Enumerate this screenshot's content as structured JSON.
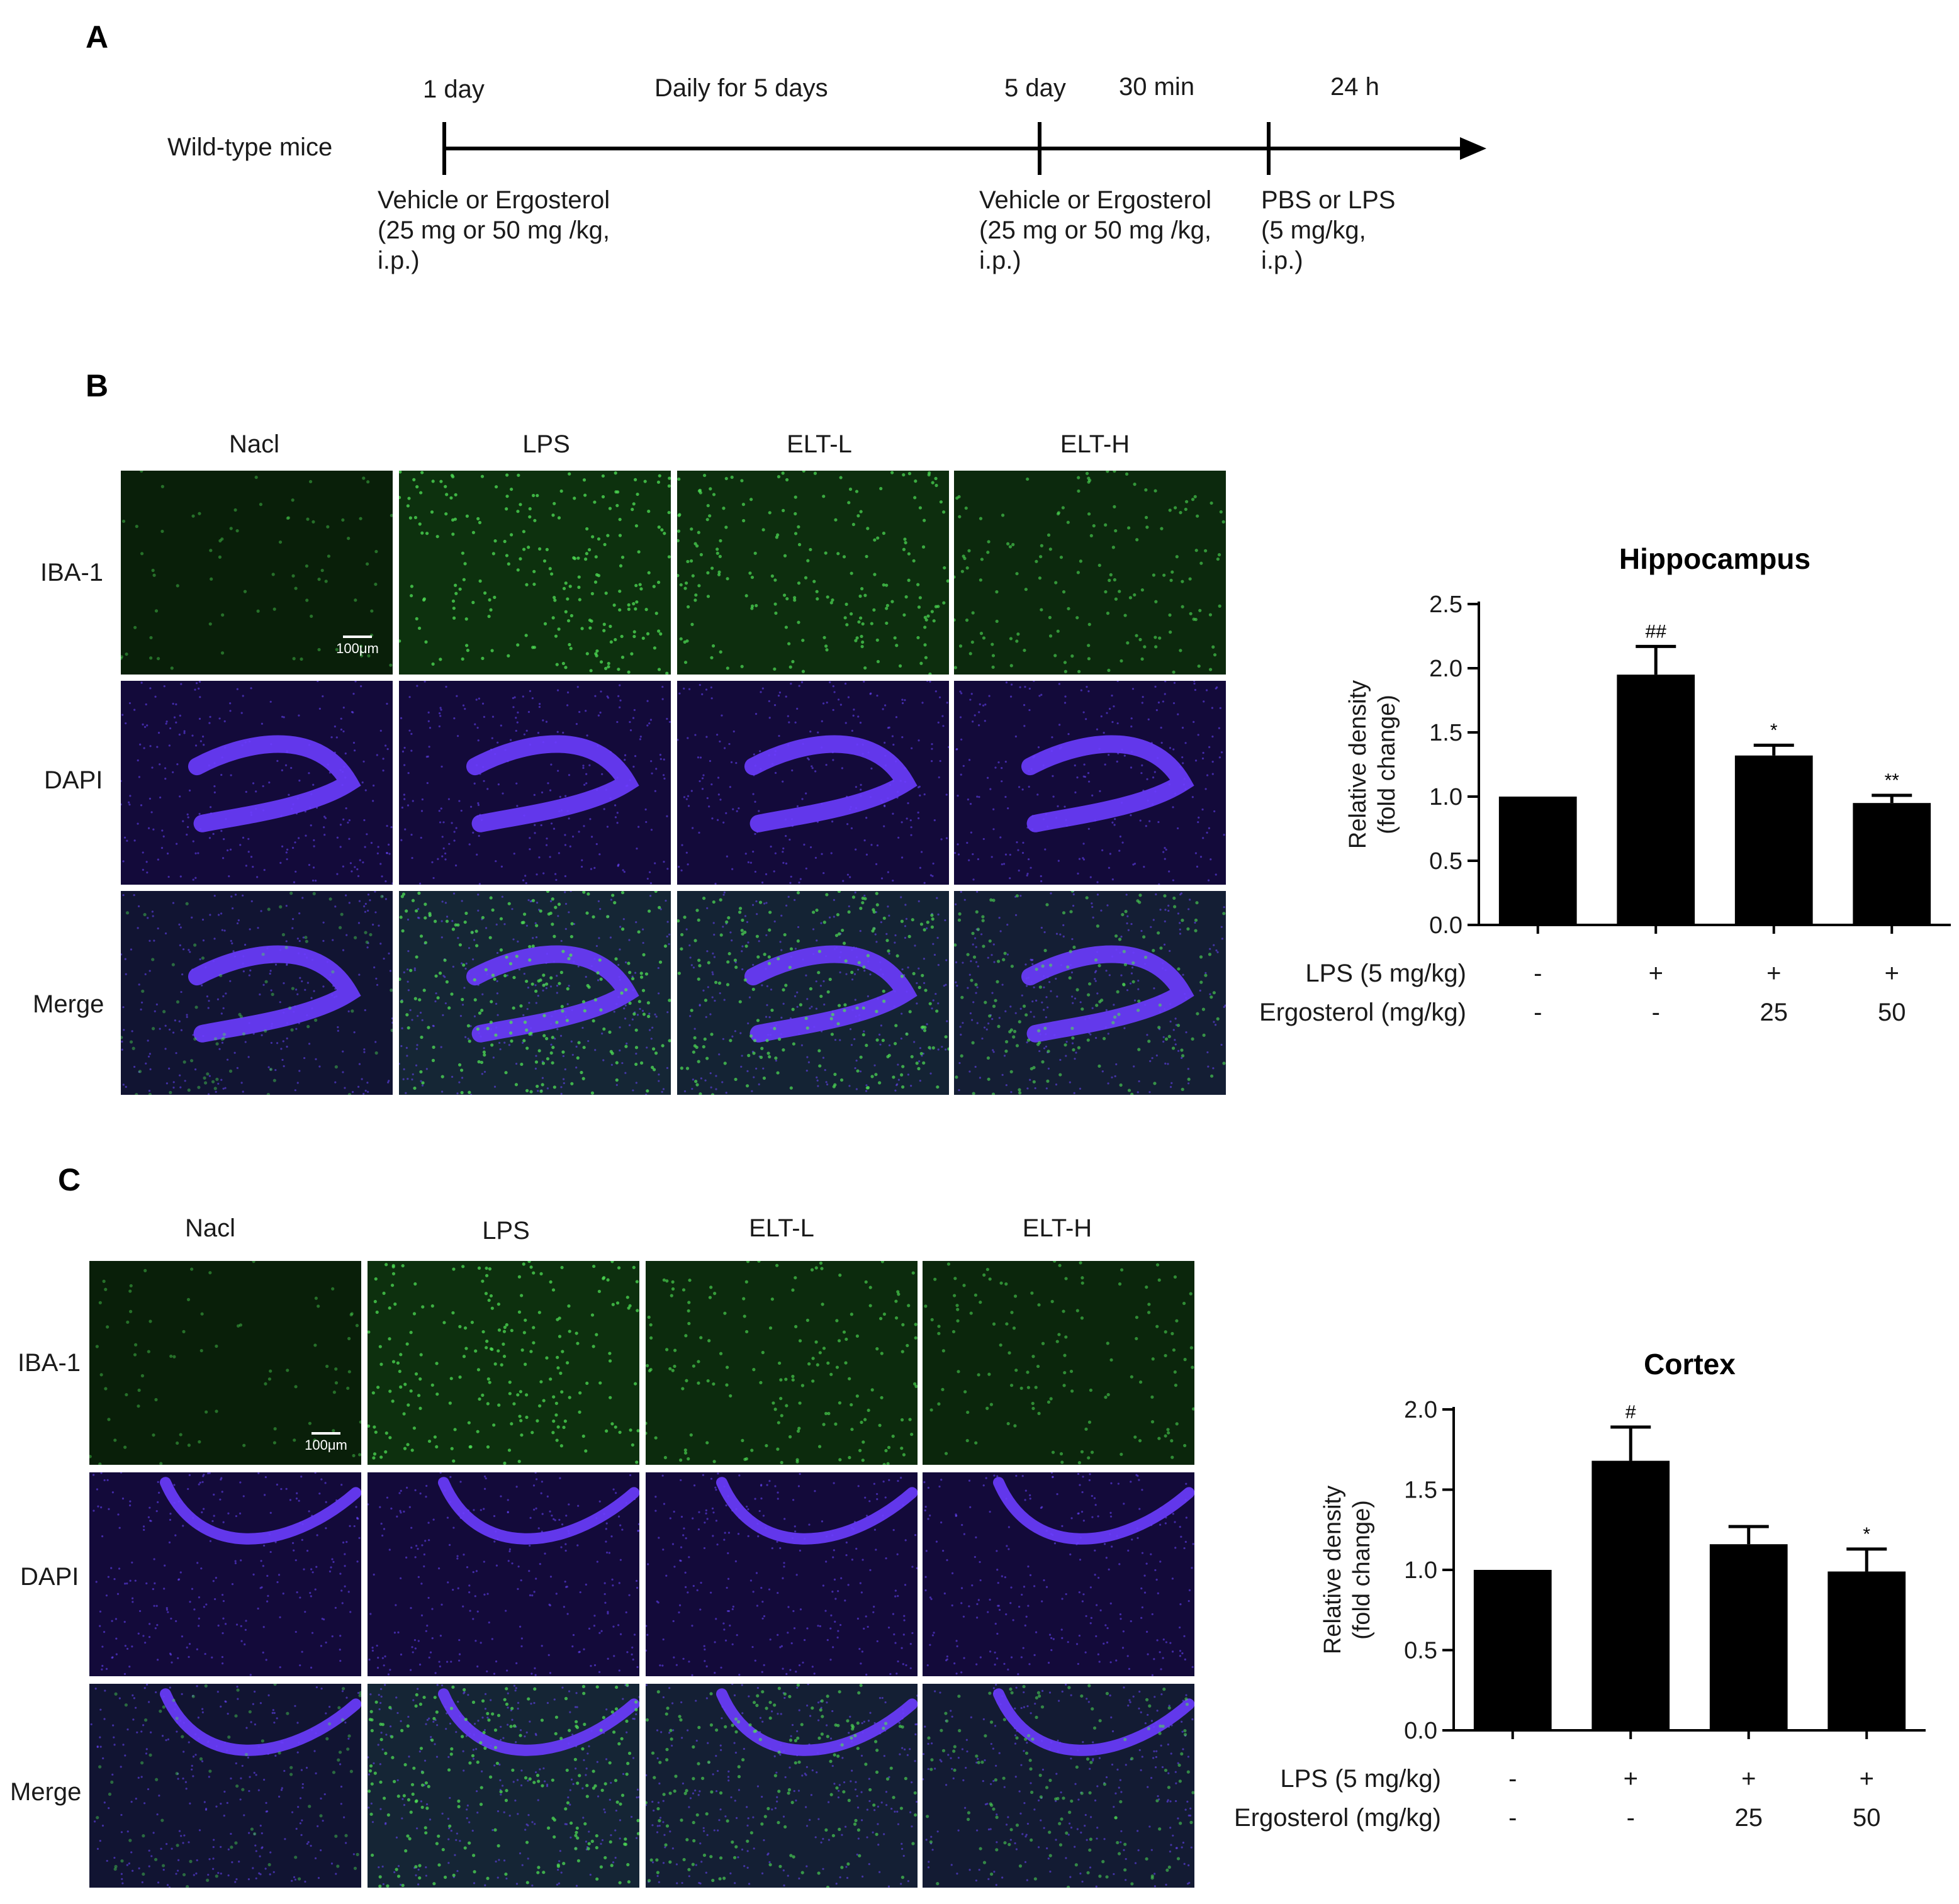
{
  "panel_a": {
    "letter": "A",
    "subject": "Wild-type mice",
    "top_labels": [
      "1 day",
      "Daily for 5 days",
      "5 day",
      "30 min",
      "24 h"
    ],
    "bottom_labels": [
      [
        "Vehicle or Ergosterol",
        "(25 mg or 50 mg /kg,",
        "i.p.)"
      ],
      [
        "Vehicle or Ergosterol",
        "(25 mg or 50 mg /kg,",
        "i.p.)"
      ],
      [
        "PBS or LPS",
        "(5 mg/kg,",
        "i.p.)"
      ]
    ]
  },
  "panel_b": {
    "letter": "B",
    "columns": [
      "Nacl",
      "LPS",
      "ELT-L",
      "ELT-H"
    ],
    "rows": [
      "IBA-1",
      "DAPI",
      "Merge"
    ],
    "scale_bar": "100μm"
  },
  "panel_c": {
    "letter": "C",
    "columns": [
      "Nacl",
      "LPS",
      "ELT-L",
      "ELT-H"
    ],
    "rows": [
      "IBA-1",
      "DAPI",
      "Merge"
    ],
    "scale_bar": "100μm"
  },
  "colors": {
    "iba1": "#33c23a",
    "dapi": "#5a2ff0",
    "bar": "#000000"
  },
  "chart_data": [
    {
      "type": "bar",
      "title": "Hippocampus",
      "ylabel": [
        "Relative density",
        "(fold change)"
      ],
      "ylim": [
        0,
        2.5
      ],
      "yticks": [
        "0.0",
        "0.5",
        "1.0",
        "1.5",
        "2.0",
        "2.5"
      ],
      "ytick_values": [
        0,
        0.5,
        1.0,
        1.5,
        2.0,
        2.5
      ],
      "values": [
        1.0,
        1.95,
        1.32,
        0.95
      ],
      "errors": [
        0,
        0.22,
        0.08,
        0.06
      ],
      "annotations": [
        "",
        "##",
        "*",
        "**"
      ],
      "condition_rows": [
        {
          "label": "LPS (5 mg/kg)",
          "values": [
            "-",
            "+",
            "+",
            "+"
          ]
        },
        {
          "label": "Ergosterol (mg/kg)",
          "values": [
            "-",
            "-",
            "25",
            "50"
          ]
        }
      ]
    },
    {
      "type": "bar",
      "title": "Cortex",
      "ylabel": [
        "Relative density",
        "(fold change)"
      ],
      "ylim": [
        0,
        2.0
      ],
      "yticks": [
        "0.0",
        "0.5",
        "1.0",
        "1.5",
        "2.0"
      ],
      "ytick_values": [
        0,
        0.5,
        1.0,
        1.5,
        2.0
      ],
      "values": [
        1.0,
        1.68,
        1.16,
        0.99
      ],
      "errors": [
        0,
        0.21,
        0.11,
        0.14
      ],
      "annotations": [
        "",
        "#",
        "",
        "*"
      ],
      "condition_rows": [
        {
          "label": "LPS (5 mg/kg)",
          "values": [
            "-",
            "+",
            "+",
            "+"
          ]
        },
        {
          "label": "Ergosterol (mg/kg)",
          "values": [
            "-",
            "-",
            "25",
            "50"
          ]
        }
      ]
    }
  ]
}
